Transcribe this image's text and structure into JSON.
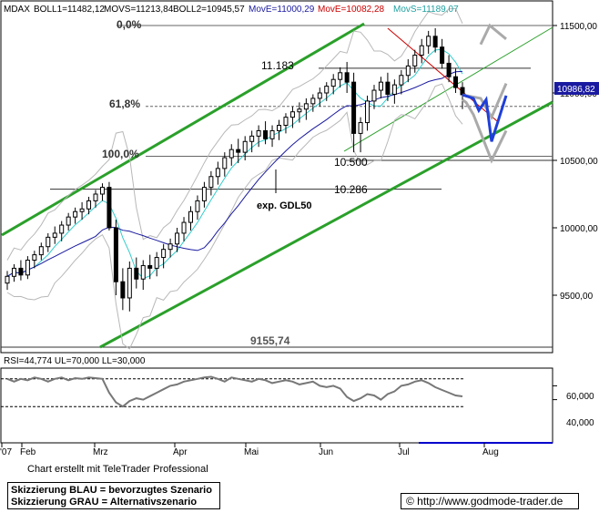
{
  "header": {
    "symbol": "MDAX",
    "boll1": "BOLL1=11482,12",
    "movs_a": "MOVS=11213,84",
    "boll2": "BOLL2=10945,57",
    "move_blue": "MovE=11000,29",
    "move_red": "MovE=10082,28",
    "movs_cyan": "MovS=11189,07"
  },
  "annotations": {
    "fib_0": "0,0%",
    "fib_618": "61,8%",
    "fib_100": "100,0%",
    "level_11183": "11.183",
    "level_10500": "10.500",
    "level_10286": "10.286",
    "gdl_label": "exp. GDL50",
    "low_label": "9155,74",
    "last_price": "10986,82"
  },
  "rsi": {
    "label": "RSI=44,774 UL=70,000 LL=30,000",
    "ticks": [
      "60,000",
      "40,000"
    ],
    "upper": 70,
    "lower": 30
  },
  "footer": {
    "credit": "Chart erstellt mit TeleTrader Professional",
    "legend_blue": "Skizzierung BLAU = bevorzugtes Szenario",
    "legend_grey": "Skizzierung GRAU = Alternativszenario",
    "url": "© http://www.godmode-trader.de"
  },
  "colors": {
    "channel": "#2aa02a",
    "bollinger": "#b8b8b8",
    "move_blue": "#1a1aa0",
    "movs_cyan": "#33cccc",
    "move_red": "#cc0000",
    "scenario_blue": "#1f3fd9",
    "scenario_grey": "#aaaaaa"
  },
  "chart_data": {
    "type": "candlestick",
    "ylim": [
      9100,
      11600
    ],
    "yticks": [
      11500,
      11000,
      10500,
      10000,
      9500
    ],
    "ytick_labels": [
      "11500,00",
      "11000,00",
      "10500,00",
      "10000,00",
      "9500,00"
    ],
    "xlabels": [
      "'07",
      "Feb",
      "Mrz",
      "Apr",
      "Mai",
      "Jun",
      "Jul",
      "Aug"
    ],
    "horizontal_levels": [
      11183,
      10500,
      10286,
      9155.74
    ],
    "fib_levels": {
      "0,0%": 11500,
      "61,8%": 10900,
      "100,0%": 10530
    },
    "ohlc": [
      [
        9590,
        9680,
        9540,
        9640
      ],
      [
        9640,
        9730,
        9600,
        9700
      ],
      [
        9700,
        9760,
        9610,
        9650
      ],
      [
        9650,
        9790,
        9620,
        9760
      ],
      [
        9760,
        9830,
        9700,
        9800
      ],
      [
        9800,
        9890,
        9760,
        9860
      ],
      [
        9860,
        9960,
        9820,
        9930
      ],
      [
        9930,
        10010,
        9880,
        9960
      ],
      [
        9960,
        10050,
        9900,
        10020
      ],
      [
        10020,
        10110,
        9980,
        10080
      ],
      [
        10080,
        10150,
        10030,
        10120
      ],
      [
        10120,
        10190,
        10060,
        10140
      ],
      [
        10140,
        10230,
        10100,
        10200
      ],
      [
        10200,
        10280,
        10150,
        10250
      ],
      [
        10250,
        10330,
        10200,
        10300
      ],
      [
        10300,
        10340,
        9980,
        10000
      ],
      [
        10000,
        10060,
        9500,
        9600
      ],
      [
        9600,
        9700,
        9390,
        9480
      ],
      [
        9480,
        9750,
        9380,
        9700
      ],
      [
        9700,
        9780,
        9550,
        9620
      ],
      [
        9620,
        9760,
        9540,
        9720
      ],
      [
        9720,
        9800,
        9620,
        9700
      ],
      [
        9700,
        9820,
        9640,
        9780
      ],
      [
        9780,
        9880,
        9700,
        9840
      ],
      [
        9840,
        9920,
        9780,
        9880
      ],
      [
        9880,
        10000,
        9820,
        9960
      ],
      [
        9960,
        10080,
        9900,
        10040
      ],
      [
        10040,
        10160,
        9980,
        10120
      ],
      [
        10120,
        10240,
        10060,
        10200
      ],
      [
        10200,
        10340,
        10150,
        10300
      ],
      [
        10300,
        10420,
        10240,
        10380
      ],
      [
        10380,
        10490,
        10320,
        10440
      ],
      [
        10440,
        10560,
        10380,
        10520
      ],
      [
        10520,
        10620,
        10460,
        10580
      ],
      [
        10580,
        10660,
        10480,
        10560
      ],
      [
        10560,
        10680,
        10500,
        10640
      ],
      [
        10640,
        10720,
        10560,
        10680
      ],
      [
        10680,
        10760,
        10600,
        10720
      ],
      [
        10720,
        10790,
        10620,
        10660
      ],
      [
        10660,
        10760,
        10600,
        10720
      ],
      [
        10720,
        10800,
        10650,
        10760
      ],
      [
        10760,
        10850,
        10700,
        10820
      ],
      [
        10820,
        10900,
        10740,
        10860
      ],
      [
        10860,
        10930,
        10780,
        10880
      ],
      [
        10880,
        10960,
        10800,
        10920
      ],
      [
        10920,
        10990,
        10860,
        10960
      ],
      [
        10960,
        11040,
        10900,
        11000
      ],
      [
        11000,
        11080,
        10940,
        11050
      ],
      [
        11050,
        11140,
        10990,
        11100
      ],
      [
        11100,
        11190,
        11040,
        11150
      ],
      [
        11150,
        11230,
        11000,
        11080
      ],
      [
        11080,
        11150,
        10560,
        10700
      ],
      [
        10700,
        10820,
        10560,
        10780
      ],
      [
        10780,
        10980,
        10720,
        10940
      ],
      [
        10940,
        11060,
        10880,
        11020
      ],
      [
        11020,
        11120,
        10960,
        11080
      ],
      [
        11080,
        11150,
        10940,
        10990
      ],
      [
        10990,
        11100,
        10920,
        11060
      ],
      [
        11060,
        11170,
        10990,
        11130
      ],
      [
        11130,
        11250,
        11080,
        11200
      ],
      [
        11200,
        11320,
        11150,
        11280
      ],
      [
        11280,
        11400,
        11220,
        11350
      ],
      [
        11350,
        11460,
        11290,
        11420
      ],
      [
        11420,
        11480,
        11300,
        11340
      ],
      [
        11340,
        11400,
        11180,
        11220
      ],
      [
        11220,
        11280,
        11080,
        11120
      ],
      [
        11120,
        11180,
        11000,
        11040
      ],
      [
        11040,
        11080,
        10880,
        10986.82
      ]
    ],
    "series": [
      {
        "name": "BOLL1",
        "upper": true
      },
      {
        "name": "BOLL2",
        "lower": true
      },
      {
        "name": "MovE",
        "color": "blue"
      },
      {
        "name": "MovS",
        "color": "cyan"
      }
    ],
    "rsi_values": [
      70,
      66,
      70,
      68,
      72,
      70,
      66,
      70,
      72,
      68,
      71,
      70,
      72,
      71,
      70,
      50,
      36,
      30,
      38,
      42,
      40,
      45,
      50,
      55,
      60,
      62,
      66,
      68,
      70,
      72,
      73,
      70,
      66,
      72,
      70,
      68,
      66,
      70,
      68,
      64,
      66,
      68,
      66,
      62,
      64,
      66,
      60,
      58,
      60,
      56,
      44,
      38,
      42,
      48,
      46,
      40,
      48,
      52,
      60,
      62,
      66,
      68,
      64,
      58,
      54,
      50,
      46,
      44.774
    ]
  }
}
